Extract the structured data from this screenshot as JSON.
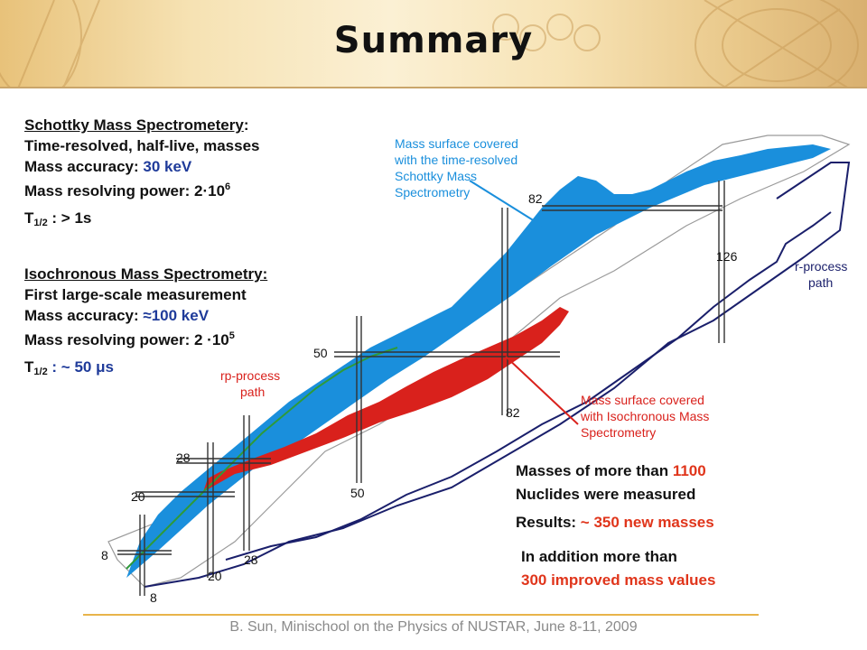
{
  "title": "Summary",
  "schottky": {
    "heading": "Schottky Mass Spectrometery",
    "line1": "Time-resolved, half-live, masses",
    "accuracy_label": "Mass accuracy: ",
    "accuracy_value": "30 keV",
    "power_label": "Mass resolving power: ",
    "power_value": "2·10",
    "power_exp": "6",
    "t_label": "T",
    "t_sub": "1/2",
    "t_value": " : > 1s"
  },
  "isochronous": {
    "heading": "Isochronous Mass Spectrometry:",
    "line1": "First large-scale measurement",
    "accuracy_label": "Mass accuracy: ",
    "accuracy_value": "≈100 keV",
    "power_label": "Mass resolving power: ",
    "power_value": "2 ·10",
    "power_exp": "5",
    "t_label": "T",
    "t_sub": "1/2",
    "t_value": " : ~ 50 μs"
  },
  "diagram": {
    "schottky_callout": [
      "Mass surface covered",
      "with the time-resolved",
      "Schottky Mass",
      "Spectrometry"
    ],
    "iso_callout": [
      "Mass surface covered",
      "with Isochronous Mass",
      "Spectrometry"
    ],
    "rprocess": [
      "r-process",
      "path"
    ],
    "rpprocess": [
      "rp-process",
      "path"
    ],
    "magic": [
      "8",
      "8",
      "20",
      "20",
      "28",
      "28",
      "50",
      "50",
      "82",
      "82",
      "126"
    ]
  },
  "notes": {
    "masses_pre": "Masses of more than ",
    "masses_count": "1100",
    "nuclides": "Nuclides were measured",
    "results_label": "Results: ",
    "results_value": "~ 350 new masses",
    "addition": "In addition more than",
    "improved": "300 improved mass values"
  },
  "footer": "B. Sun, Minischool on the Physics of NUSTAR, June 8-11, 2009",
  "colors": {
    "blue": "#1a8fdc",
    "red": "#d9211c",
    "navy": "#1a1f6b",
    "green": "#2e9a3a",
    "title_blue": "#1f3b9a",
    "accent_red": "#e0351b"
  }
}
